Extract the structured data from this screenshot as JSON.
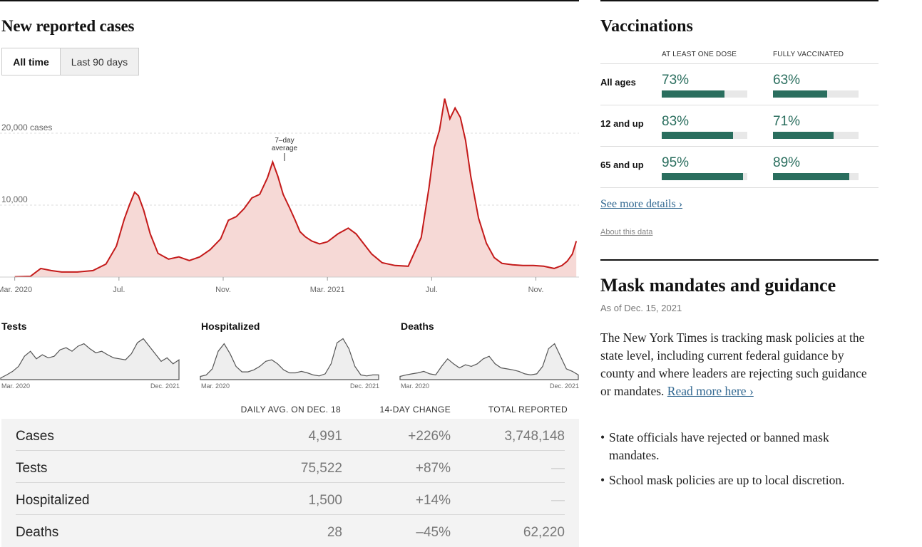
{
  "cases": {
    "title": "New reported cases",
    "toggles": [
      "All time",
      "Last 90 days"
    ],
    "annotation": [
      "7–day",
      "average"
    ]
  },
  "chart_data": {
    "type": "area",
    "ylabels": [
      "20,000 cases",
      "10,000"
    ],
    "y_ticks": [
      10000,
      20000
    ],
    "ylim": [
      0,
      25000
    ],
    "x_tick_labels": [
      "Mar. 2020",
      "Jul.",
      "Nov.",
      "Mar. 2021",
      "Jul.",
      "Nov."
    ],
    "x_tick_months": [
      0,
      4,
      8,
      12,
      16,
      20
    ],
    "x_range_months": [
      -0.1,
      21.6
    ],
    "x_month_origin": "2020-03",
    "series": [
      {
        "months": [
          0,
          0.6,
          1.0,
          1.4,
          1.8,
          2.4,
          3.0,
          3.5,
          3.9,
          4.2,
          4.4,
          4.6,
          4.75,
          4.95,
          5.2,
          5.5,
          5.9,
          6.3,
          6.7,
          7.1,
          7.5,
          7.9,
          8.2,
          8.5,
          8.8,
          9.1,
          9.4,
          9.7,
          9.9,
          10.1,
          10.3,
          10.55,
          10.75,
          10.95,
          11.15,
          11.4,
          11.7,
          12.0,
          12.4,
          12.8,
          13.1,
          13.4,
          13.7,
          14.1,
          14.6,
          15.1,
          15.6,
          15.9,
          16.1,
          16.3,
          16.5,
          16.7,
          16.9,
          17.1,
          17.3,
          17.5,
          17.8,
          18.1,
          18.4,
          18.7,
          19.1,
          19.5,
          19.9,
          20.3,
          20.7,
          21.0,
          21.2,
          21.4,
          21.55
        ],
        "values": [
          40,
          100,
          1200,
          900,
          700,
          700,
          900,
          1800,
          4300,
          8000,
          10000,
          11800,
          11300,
          9300,
          6000,
          3300,
          2500,
          2800,
          2300,
          2800,
          3800,
          5300,
          7900,
          8400,
          9500,
          11000,
          11500,
          13800,
          16000,
          14000,
          11500,
          9600,
          8000,
          6300,
          5600,
          5000,
          4600,
          4900,
          6000,
          6800,
          6000,
          4600,
          3200,
          2000,
          1600,
          1500,
          5500,
          12500,
          18000,
          20400,
          24800,
          22000,
          23500,
          22200,
          19000,
          14000,
          8200,
          4700,
          2700,
          1900,
          1700,
          1600,
          1600,
          1500,
          1200,
          1600,
          2200,
          3200,
          5000
        ]
      }
    ]
  },
  "minis": [
    {
      "title": "Tests",
      "start": "Mar. 2020",
      "end": "Dec. 2021",
      "values": [
        2,
        8,
        15,
        25,
        45,
        55,
        40,
        48,
        42,
        45,
        58,
        62,
        55,
        65,
        70,
        60,
        52,
        55,
        48,
        42,
        40,
        38,
        50,
        72,
        80,
        65,
        50,
        35,
        42,
        30,
        38
      ]
    },
    {
      "title": "Hospitalized",
      "start": "Mar. 2020",
      "end": "Dec. 2021",
      "values": [
        5,
        8,
        20,
        55,
        70,
        50,
        25,
        14,
        14,
        18,
        25,
        35,
        38,
        30,
        18,
        12,
        12,
        15,
        12,
        8,
        6,
        10,
        30,
        72,
        80,
        60,
        25,
        8,
        6,
        8,
        8
      ]
    },
    {
      "title": "Deaths",
      "start": "Mar. 2020",
      "end": "Dec. 2021",
      "values": [
        5,
        8,
        10,
        12,
        15,
        10,
        8,
        25,
        40,
        30,
        22,
        28,
        25,
        30,
        40,
        45,
        30,
        22,
        20,
        18,
        15,
        10,
        8,
        10,
        25,
        60,
        70,
        45,
        20,
        15,
        8
      ]
    }
  ],
  "table": {
    "headers": [
      "DAILY AVG. ON DEC. 18",
      "14-DAY CHANGE",
      "TOTAL REPORTED"
    ],
    "rows": [
      {
        "name": "Cases",
        "avg": "4,991",
        "change": "+226%",
        "total": "3,748,148"
      },
      {
        "name": "Tests",
        "avg": "75,522",
        "change": "+87%",
        "total": "—"
      },
      {
        "name": "Hospitalized",
        "avg": "1,500",
        "change": "+14%",
        "total": "—"
      },
      {
        "name": "Deaths",
        "avg": "28",
        "change": "–45%",
        "total": "62,220"
      }
    ]
  },
  "vaccinations": {
    "title": "Vaccinations",
    "headers": [
      "AT LEAST ONE DOSE",
      "FULLY VACCINATED"
    ],
    "accent": "#2a6e5e",
    "rows": [
      {
        "label": "All ages",
        "one": "73%",
        "one_value": 73,
        "full": "63%",
        "full_value": 63
      },
      {
        "label": "12 and up",
        "one": "83%",
        "one_value": 83,
        "full": "71%",
        "full_value": 71
      },
      {
        "label": "65 and up",
        "one": "95%",
        "one_value": 95,
        "full": "89%",
        "full_value": 89
      }
    ],
    "see_more": "See more details ›",
    "about": "About this data"
  },
  "mask": {
    "title": "Mask mandates and guidance",
    "as_of": "As of Dec. 15, 2021",
    "body": "The New York Times is tracking mask policies at the state level, including current federal guidance by county and where leaders are rejecting such guidance or mandates.",
    "link": "Read more here ›",
    "bullets": [
      "State officials have rejected or banned mask mandates.",
      "School mask policies are up to local discretion."
    ]
  },
  "colors": {
    "case_line": "#c41a1a",
    "case_fill": "#f6d9d6",
    "mini_line": "#555555",
    "mini_fill": "#eeeeee",
    "link": "#326891"
  }
}
